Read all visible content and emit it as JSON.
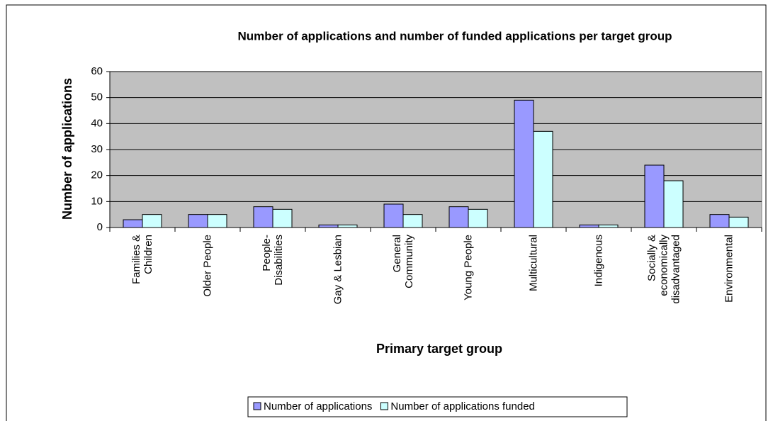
{
  "chart_data": {
    "type": "bar",
    "title": "Number of applications and number of funded applications per target group",
    "x_label": "Primary target group",
    "y_label": "Number of applications",
    "categories": [
      "Families & Children",
      "Older People",
      "People-Disabilities",
      "Gay & Lesbian",
      "General Community",
      "Young People",
      "Multicultural",
      "Indigenous",
      "Socially & economically disadvantaged",
      "Environmental"
    ],
    "series": [
      {
        "name": "Number of applications",
        "color": "#9999ff",
        "values": [
          3,
          5,
          8,
          1,
          9,
          8,
          49,
          1,
          24,
          5
        ]
      },
      {
        "name": "Number of applications funded",
        "color": "#ccffff",
        "values": [
          5,
          5,
          7,
          1,
          5,
          7,
          37,
          1,
          18,
          4
        ]
      }
    ],
    "ylim": [
      0,
      60
    ],
    "yticks": [
      0,
      10,
      20,
      30,
      40,
      50,
      60
    ],
    "grid": true,
    "legend": "bottom"
  }
}
